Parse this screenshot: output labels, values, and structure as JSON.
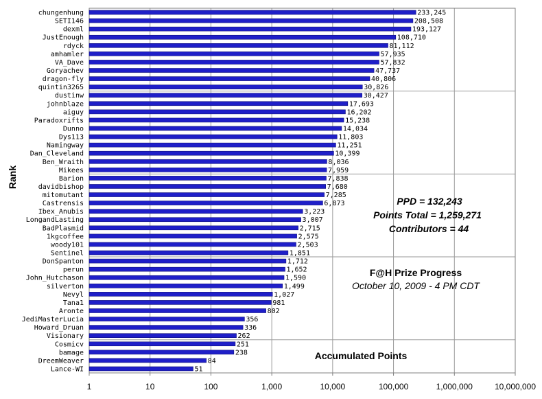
{
  "chart_data": {
    "type": "bar",
    "orientation": "horizontal",
    "x_scale": "log",
    "xlim": [
      1,
      10000000
    ],
    "grid": "major vertical gridlines at each decade; horizontal gridlines every 10 rows",
    "legend": "none",
    "colors": {
      "bar": "#1f1fc8",
      "bar_edge": "#10107a",
      "gridline": "#9a9a9a",
      "text": "#000000"
    },
    "ylabel": "Rank",
    "xlabel": "",
    "x_ticks": [
      "1",
      "10",
      "100",
      "1,000",
      "10,000",
      "100,000",
      "1,000,000",
      "10,000,000"
    ],
    "categories": [
      "chungenhung",
      "SETI146",
      "dexml",
      "JustEnough",
      "rdyck",
      "amhamler",
      "VA_Dave",
      "Goryachev",
      "dragon-fly",
      "quintin3265",
      "dustinw",
      "johnblaze",
      "aiguy",
      "Paradoxrifts",
      "Dunno",
      "Dys113",
      "Namingway",
      "Dan_Cleveland",
      "Ben_Wraith",
      "Mikees",
      "Barion",
      "davidbishop",
      "mitomutant",
      "Castrensis",
      "Ibex_Anubis",
      "LongandLasting",
      "BadPlasmid",
      "1kgcoffee",
      "woody101",
      "Sentinel",
      "DonSpanton",
      "perun",
      "John_Hutchason",
      "silverton",
      "Nevyl",
      "Tana1",
      "Aronte",
      "JediMasterLucia",
      "Howard_Druan",
      "Visionary",
      "Cosmicv",
      "bamage",
      "DreemWeaver",
      "Lance-WI"
    ],
    "values": [
      233245,
      208508,
      193127,
      108710,
      81112,
      57935,
      57832,
      47737,
      40806,
      30826,
      30427,
      17693,
      16202,
      15238,
      14034,
      11803,
      11251,
      10399,
      8036,
      7959,
      7838,
      7680,
      7285,
      6873,
      3223,
      3007,
      2715,
      2575,
      2503,
      1851,
      1712,
      1652,
      1590,
      1499,
      1027,
      981,
      802,
      356,
      336,
      262,
      251,
      238,
      84,
      51
    ],
    "value_labels": [
      "233,245",
      "208,508",
      "193,127",
      "108,710",
      "81,112",
      "57,935",
      "57,832",
      "47,737",
      "40,806",
      "30,826",
      "30,427",
      "17,693",
      "16,202",
      "15,238",
      "14,034",
      "11,803",
      "11,251",
      "10,399",
      "8,036",
      "7,959",
      "7,838",
      "7,680",
      "7,285",
      "6,873",
      "3,223",
      "3,007",
      "2,715",
      "2,575",
      "2,503",
      "1,851",
      "1,712",
      "1,652",
      "1,590",
      "1,499",
      "1,027",
      "981",
      "802",
      "356",
      "336",
      "262",
      "251",
      "238",
      "84",
      "51"
    ],
    "annotations": {
      "ppd": "PPD = 132,243",
      "points_total": "Points Total = 1,259,271",
      "contributors": "Contributors = 44",
      "title": "F@H Prize Progress",
      "subtitle": "October 10, 2009 - 4 PM CDT",
      "footer": "Accumulated Points"
    }
  }
}
